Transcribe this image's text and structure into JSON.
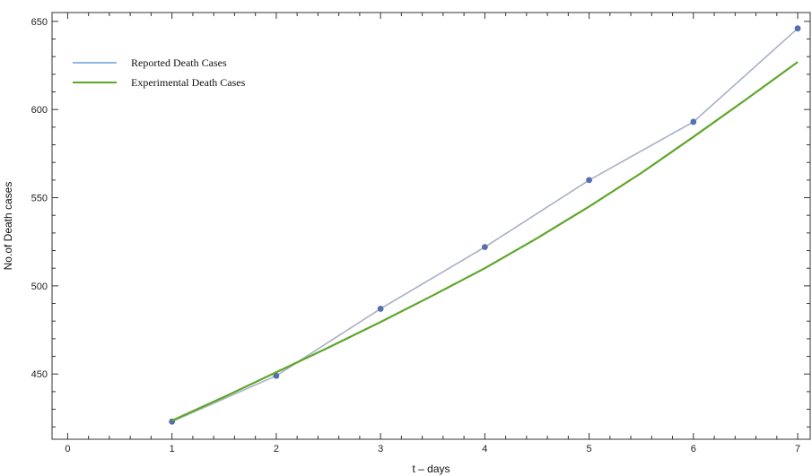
{
  "chart_data": {
    "type": "line",
    "title": "",
    "xlabel": "t – days",
    "ylabel": "No.of Death cases",
    "xlim": [
      -0.15,
      7.12
    ],
    "ylim": [
      413,
      655
    ],
    "x_ticks": [
      0,
      1,
      2,
      3,
      4,
      5,
      6,
      7
    ],
    "y_ticks": [
      450,
      500,
      550,
      600,
      650
    ],
    "legend_position": "top-left",
    "grid": false,
    "series": [
      {
        "name": "Reported Death Cases",
        "color": "#a9b0c3",
        "legend_color": "#8fb8e0",
        "marker_color": "#5470b0",
        "markers": true,
        "x": [
          1,
          2,
          3,
          4,
          5,
          6,
          7
        ],
        "y": [
          423,
          449,
          487,
          522,
          560,
          593,
          646
        ]
      },
      {
        "name": "Experimental Death Cases",
        "color": "#5fa62a",
        "markers": false,
        "x": [
          1,
          1.5,
          2,
          2.5,
          3,
          3.5,
          4,
          4.5,
          5,
          5.5,
          6,
          6.5,
          7
        ],
        "y": [
          423.5,
          437,
          451,
          465,
          479.5,
          494.5,
          510,
          527,
          545,
          564,
          584.5,
          605.5,
          627
        ]
      }
    ]
  }
}
